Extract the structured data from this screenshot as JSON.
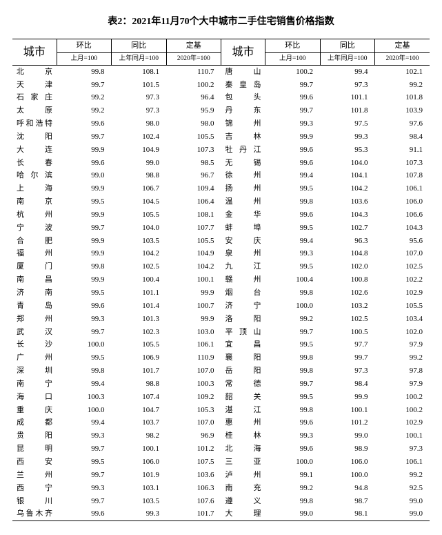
{
  "title": "表2：2021年11月70个大中城市二手住宅销售价格指数",
  "headers": {
    "city": "城市",
    "huanbi": "环比",
    "tongbi": "同比",
    "dingji": "定基",
    "sub_last_month": "上月=100",
    "sub_last_year": "上年同月=100",
    "sub_2020": "2020年=100"
  },
  "left": [
    {
      "c": "北　　京",
      "v": [
        "99.8",
        "108.1",
        "110.7"
      ]
    },
    {
      "c": "天　　津",
      "v": [
        "99.7",
        "101.5",
        "100.2"
      ]
    },
    {
      "c": "石 家 庄",
      "v": [
        "99.2",
        "97.3",
        "96.4"
      ]
    },
    {
      "c": "太　　原",
      "v": [
        "99.2",
        "97.3",
        "95.9"
      ]
    },
    {
      "c": "呼和浩特",
      "v": [
        "99.6",
        "98.0",
        "98.0"
      ]
    },
    {
      "c": "沈　　阳",
      "v": [
        "99.7",
        "102.4",
        "105.5"
      ]
    },
    {
      "c": "大　　连",
      "v": [
        "99.9",
        "104.9",
        "107.3"
      ]
    },
    {
      "c": "长　　春",
      "v": [
        "99.6",
        "99.0",
        "98.5"
      ]
    },
    {
      "c": "哈 尔 滨",
      "v": [
        "99.0",
        "98.8",
        "96.7"
      ]
    },
    {
      "c": "上　　海",
      "v": [
        "99.9",
        "106.7",
        "109.4"
      ]
    },
    {
      "c": "南　　京",
      "v": [
        "99.5",
        "104.5",
        "106.4"
      ]
    },
    {
      "c": "杭　　州",
      "v": [
        "99.9",
        "105.5",
        "108.1"
      ]
    },
    {
      "c": "宁　　波",
      "v": [
        "99.7",
        "104.0",
        "107.7"
      ]
    },
    {
      "c": "合　　肥",
      "v": [
        "99.9",
        "103.5",
        "105.5"
      ]
    },
    {
      "c": "福　　州",
      "v": [
        "99.9",
        "104.2",
        "104.9"
      ]
    },
    {
      "c": "厦　　门",
      "v": [
        "99.8",
        "102.5",
        "104.2"
      ]
    },
    {
      "c": "南　　昌",
      "v": [
        "99.9",
        "100.4",
        "100.1"
      ]
    },
    {
      "c": "济　　南",
      "v": [
        "99.5",
        "101.1",
        "99.9"
      ]
    },
    {
      "c": "青　　岛",
      "v": [
        "99.6",
        "101.4",
        "100.7"
      ]
    },
    {
      "c": "郑　　州",
      "v": [
        "99.3",
        "101.3",
        "99.9"
      ]
    },
    {
      "c": "武　　汉",
      "v": [
        "99.7",
        "102.3",
        "103.0"
      ]
    },
    {
      "c": "长　　沙",
      "v": [
        "100.0",
        "105.5",
        "106.1"
      ]
    },
    {
      "c": "广　　州",
      "v": [
        "99.5",
        "106.9",
        "110.9"
      ]
    },
    {
      "c": "深　　圳",
      "v": [
        "99.8",
        "101.7",
        "107.0"
      ]
    },
    {
      "c": "南　　宁",
      "v": [
        "99.4",
        "98.8",
        "100.3"
      ]
    },
    {
      "c": "海　　口",
      "v": [
        "100.3",
        "107.4",
        "109.2"
      ]
    },
    {
      "c": "重　　庆",
      "v": [
        "100.0",
        "104.7",
        "105.3"
      ]
    },
    {
      "c": "成　　都",
      "v": [
        "99.4",
        "103.7",
        "107.0"
      ]
    },
    {
      "c": "贵　　阳",
      "v": [
        "99.3",
        "98.2",
        "96.9"
      ]
    },
    {
      "c": "昆　　明",
      "v": [
        "99.7",
        "100.1",
        "101.2"
      ]
    },
    {
      "c": "西　　安",
      "v": [
        "99.5",
        "106.0",
        "107.5"
      ]
    },
    {
      "c": "兰　　州",
      "v": [
        "99.7",
        "101.9",
        "103.6"
      ]
    },
    {
      "c": "西　　宁",
      "v": [
        "99.3",
        "103.1",
        "106.3"
      ]
    },
    {
      "c": "银　　川",
      "v": [
        "99.7",
        "103.5",
        "107.6"
      ]
    },
    {
      "c": "乌鲁木齐",
      "v": [
        "99.6",
        "99.3",
        "101.7"
      ]
    }
  ],
  "right": [
    {
      "c": "唐　　山",
      "v": [
        "100.2",
        "99.4",
        "102.1"
      ]
    },
    {
      "c": "秦 皇 岛",
      "v": [
        "99.7",
        "97.3",
        "99.2"
      ]
    },
    {
      "c": "包　　头",
      "v": [
        "99.6",
        "101.1",
        "101.8"
      ]
    },
    {
      "c": "丹　　东",
      "v": [
        "99.7",
        "101.8",
        "103.9"
      ]
    },
    {
      "c": "锦　　州",
      "v": [
        "99.3",
        "97.5",
        "97.6"
      ]
    },
    {
      "c": "吉　　林",
      "v": [
        "99.9",
        "99.3",
        "98.4"
      ]
    },
    {
      "c": "牡 丹 江",
      "v": [
        "99.6",
        "95.3",
        "91.1"
      ]
    },
    {
      "c": "无　　锡",
      "v": [
        "99.6",
        "104.0",
        "107.3"
      ]
    },
    {
      "c": "徐　　州",
      "v": [
        "99.4",
        "104.1",
        "107.8"
      ]
    },
    {
      "c": "扬　　州",
      "v": [
        "99.5",
        "104.2",
        "106.1"
      ]
    },
    {
      "c": "温　　州",
      "v": [
        "99.8",
        "103.6",
        "106.0"
      ]
    },
    {
      "c": "金　　华",
      "v": [
        "99.6",
        "104.3",
        "106.6"
      ]
    },
    {
      "c": "蚌　　埠",
      "v": [
        "99.5",
        "102.7",
        "104.3"
      ]
    },
    {
      "c": "安　　庆",
      "v": [
        "99.4",
        "96.3",
        "95.6"
      ]
    },
    {
      "c": "泉　　州",
      "v": [
        "99.3",
        "104.8",
        "107.0"
      ]
    },
    {
      "c": "九　　江",
      "v": [
        "99.5",
        "102.0",
        "102.5"
      ]
    },
    {
      "c": "赣　　州",
      "v": [
        "100.4",
        "100.8",
        "102.2"
      ]
    },
    {
      "c": "烟　　台",
      "v": [
        "99.8",
        "102.6",
        "102.9"
      ]
    },
    {
      "c": "济　　宁",
      "v": [
        "100.0",
        "103.2",
        "105.5"
      ]
    },
    {
      "c": "洛　　阳",
      "v": [
        "99.2",
        "102.5",
        "103.4"
      ]
    },
    {
      "c": "平 顶 山",
      "v": [
        "99.7",
        "100.5",
        "102.0"
      ]
    },
    {
      "c": "宜　　昌",
      "v": [
        "99.5",
        "97.7",
        "97.9"
      ]
    },
    {
      "c": "襄　　阳",
      "v": [
        "99.8",
        "99.7",
        "99.2"
      ]
    },
    {
      "c": "岳　　阳",
      "v": [
        "99.8",
        "97.3",
        "97.8"
      ]
    },
    {
      "c": "常　　德",
      "v": [
        "99.7",
        "98.4",
        "97.9"
      ]
    },
    {
      "c": "韶　　关",
      "v": [
        "99.5",
        "99.9",
        "100.2"
      ]
    },
    {
      "c": "湛　　江",
      "v": [
        "99.8",
        "100.1",
        "100.2"
      ]
    },
    {
      "c": "惠　　州",
      "v": [
        "99.6",
        "101.2",
        "102.9"
      ]
    },
    {
      "c": "桂　　林",
      "v": [
        "99.3",
        "99.0",
        "100.1"
      ]
    },
    {
      "c": "北　　海",
      "v": [
        "99.6",
        "98.9",
        "97.3"
      ]
    },
    {
      "c": "三　　亚",
      "v": [
        "100.0",
        "106.0",
        "106.1"
      ]
    },
    {
      "c": "泸　　州",
      "v": [
        "99.1",
        "100.0",
        "99.2"
      ]
    },
    {
      "c": "南　　充",
      "v": [
        "99.2",
        "94.8",
        "92.5"
      ]
    },
    {
      "c": "遵　　义",
      "v": [
        "99.8",
        "98.7",
        "99.0"
      ]
    },
    {
      "c": "大　　理",
      "v": [
        "99.0",
        "98.1",
        "99.0"
      ]
    }
  ]
}
